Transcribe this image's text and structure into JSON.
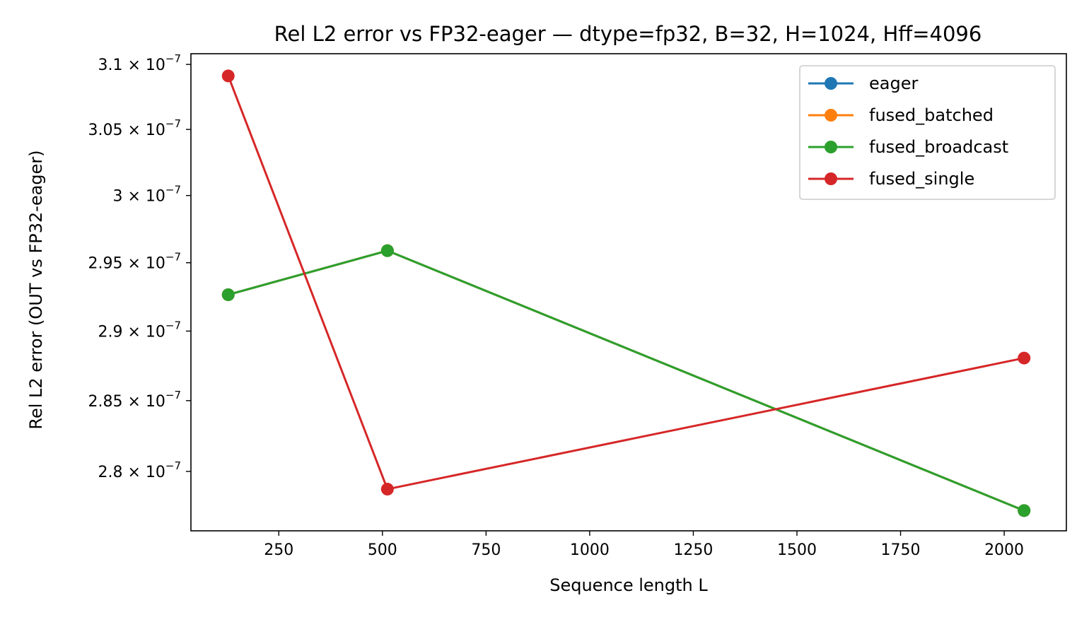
{
  "chart_data": {
    "type": "line",
    "title": "Rel L2 error vs FP32-eager — dtype=fp32, B=32, H=1024, Hff=4096",
    "xlabel": "Sequence length L",
    "ylabel": "Rel L2 error (OUT vs FP32-eager)",
    "xlim": [
      38,
      2150
    ],
    "ylim": [
      2.7587e-07,
      3.1083e-07
    ],
    "x_ticks": [
      250,
      500,
      750,
      1000,
      1250,
      1500,
      1750,
      2000
    ],
    "x_tick_labels": [
      "250",
      "500",
      "750",
      "1000",
      "1250",
      "1500",
      "1750",
      "2000"
    ],
    "y_ticks": [
      2.8e-07,
      2.85e-07,
      2.9e-07,
      2.95e-07,
      3e-07,
      3.05e-07,
      3.1e-07
    ],
    "y_tick_labels": [
      {
        "mantissa": "2.8",
        "times": "×",
        "base": "10",
        "exp": "−7"
      },
      {
        "mantissa": "2.85",
        "times": "×",
        "base": "10",
        "exp": "−7"
      },
      {
        "mantissa": "2.9",
        "times": "×",
        "base": "10",
        "exp": "−7"
      },
      {
        "mantissa": "2.95",
        "times": "×",
        "base": "10",
        "exp": "−7"
      },
      {
        "mantissa": "3",
        "times": "×",
        "base": "10",
        "exp": "−7"
      },
      {
        "mantissa": "3.05",
        "times": "×",
        "base": "10",
        "exp": "−7"
      },
      {
        "mantissa": "3.1",
        "times": "×",
        "base": "10",
        "exp": "−7"
      }
    ],
    "y_scale": "log",
    "grid": false,
    "legend_position": "top-right",
    "x": [
      128,
      512,
      2048
    ],
    "series": [
      {
        "name": "eager",
        "color": "#1f77b4",
        "values": [
          2.9265e-07,
          2.9589e-07,
          2.7727e-07
        ]
      },
      {
        "name": "fused_batched",
        "color": "#ff7f0e",
        "values": [
          2.9265e-07,
          2.9589e-07,
          2.7727e-07
        ]
      },
      {
        "name": "fused_broadcast",
        "color": "#2ca02c",
        "values": [
          2.9265e-07,
          2.9589e-07,
          2.7727e-07
        ]
      },
      {
        "name": "fused_single",
        "color": "#d62728",
        "values": [
          3.0911e-07,
          2.7876e-07,
          2.8805e-07
        ]
      }
    ]
  }
}
